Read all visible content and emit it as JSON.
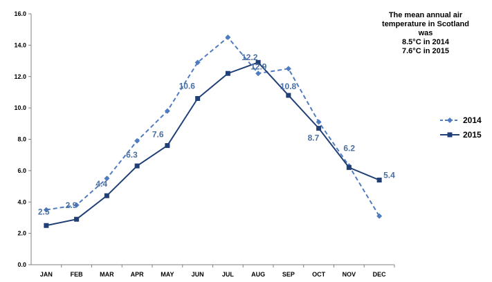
{
  "chart_data": {
    "type": "line",
    "categories": [
      "JAN",
      "FEB",
      "MAR",
      "APR",
      "MAY",
      "JUN",
      "JUL",
      "AUG",
      "SEP",
      "OCT",
      "NOV",
      "DEC"
    ],
    "series": [
      {
        "name": "2014",
        "values": [
          3.5,
          3.8,
          5.5,
          7.9,
          9.8,
          12.9,
          14.5,
          12.2,
          12.5,
          9.1,
          6.3,
          3.1
        ],
        "style": "dashed-diamond",
        "color": "#4f7cc0"
      },
      {
        "name": "2015",
        "values": [
          2.5,
          2.9,
          4.4,
          6.3,
          7.6,
          10.6,
          12.2,
          12.9,
          10.8,
          8.7,
          6.2,
          5.4
        ],
        "style": "solid-square",
        "color": "#1f3f76"
      }
    ],
    "data_labels": [
      "2.5",
      "2.9",
      "4.4",
      "6.3",
      "7.6",
      "10.6",
      "",
      "12.9",
      "10.8",
      "8.7",
      "6.2",
      "5.4"
    ],
    "extra_label": "12.2",
    "ylim": [
      0,
      16
    ],
    "yticks": [
      "0.0",
      "2.0",
      "4.0",
      "6.0",
      "8.0",
      "10.0",
      "12.0",
      "14.0",
      "16.0"
    ],
    "grid": false,
    "legend": "right"
  },
  "annotation": {
    "lines": [
      "The mean annual air",
      "temperature in Scotland",
      "was",
      "8.5°C in 2014",
      "7.6°C in 2015"
    ]
  }
}
